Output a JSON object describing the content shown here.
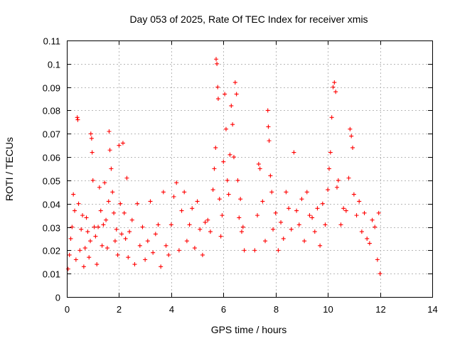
{
  "chart_data": {
    "type": "scatter",
    "title": "Day 053 of 2025, Rate Of TEC Index for receiver xmis",
    "xlabel": "GPS time / hours",
    "ylabel": "ROTI / TECUs",
    "xlim": [
      0,
      14
    ],
    "ylim": [
      0,
      0.11
    ],
    "xticks": [
      0,
      2,
      4,
      6,
      8,
      10,
      12,
      14
    ],
    "yticks": [
      0,
      0.01,
      0.02,
      0.03,
      0.04,
      0.05,
      0.06,
      0.07,
      0.08,
      0.09,
      0.1,
      0.11
    ],
    "x_tick_labels": [
      "0",
      "2",
      "4",
      "6",
      "8",
      "10",
      "12",
      "14"
    ],
    "y_tick_labels": [
      "0",
      "0.01",
      "0.02",
      "0.03",
      "0.04",
      "0.05",
      "0.06",
      "0.07",
      "0.08",
      "0.09",
      "0.1",
      "0.11"
    ],
    "grid": true,
    "marker": "plus",
    "color": "#ff0000",
    "data_extent_hours": [
      0,
      12
    ],
    "series": [
      {
        "points": [
          [
            0.05,
            0.012
          ],
          [
            0.1,
            0.018
          ],
          [
            0.15,
            0.025
          ],
          [
            0.2,
            0.03
          ],
          [
            0.25,
            0.044
          ],
          [
            0.3,
            0.037
          ],
          [
            0.35,
            0.016
          ],
          [
            0.4,
            0.077
          ],
          [
            0.42,
            0.076
          ],
          [
            0.45,
            0.04
          ],
          [
            0.5,
            0.02
          ],
          [
            0.55,
            0.029
          ],
          [
            0.6,
            0.035
          ],
          [
            0.65,
            0.013
          ],
          [
            0.7,
            0.021
          ],
          [
            0.75,
            0.034
          ],
          [
            0.8,
            0.028
          ],
          [
            0.85,
            0.017
          ],
          [
            0.9,
            0.024
          ],
          [
            0.92,
            0.07
          ],
          [
            0.95,
            0.068
          ],
          [
            0.97,
            0.062
          ],
          [
            1.0,
            0.05
          ],
          [
            1.05,
            0.03
          ],
          [
            1.1,
            0.026
          ],
          [
            1.15,
            0.014
          ],
          [
            1.2,
            0.03
          ],
          [
            1.25,
            0.047
          ],
          [
            1.3,
            0.037
          ],
          [
            1.35,
            0.022
          ],
          [
            1.4,
            0.031
          ],
          [
            1.45,
            0.049
          ],
          [
            1.5,
            0.033
          ],
          [
            1.55,
            0.021
          ],
          [
            1.6,
            0.041
          ],
          [
            1.62,
            0.071
          ],
          [
            1.65,
            0.063
          ],
          [
            1.7,
            0.055
          ],
          [
            1.75,
            0.045
          ],
          [
            1.8,
            0.036
          ],
          [
            1.85,
            0.024
          ],
          [
            1.9,
            0.029
          ],
          [
            1.95,
            0.018
          ],
          [
            2.0,
            0.065
          ],
          [
            2.05,
            0.04
          ],
          [
            2.1,
            0.027
          ],
          [
            2.15,
            0.066
          ],
          [
            2.2,
            0.036
          ],
          [
            2.25,
            0.025
          ],
          [
            2.3,
            0.051
          ],
          [
            2.35,
            0.017
          ],
          [
            2.4,
            0.028
          ],
          [
            2.5,
            0.033
          ],
          [
            2.6,
            0.014
          ],
          [
            2.7,
            0.04
          ],
          [
            2.8,
            0.022
          ],
          [
            2.9,
            0.03
          ],
          [
            3.0,
            0.016
          ],
          [
            3.1,
            0.024
          ],
          [
            3.2,
            0.041
          ],
          [
            3.3,
            0.019
          ],
          [
            3.4,
            0.027
          ],
          [
            3.5,
            0.031
          ],
          [
            3.6,
            0.013
          ],
          [
            3.7,
            0.045
          ],
          [
            3.8,
            0.022
          ],
          [
            3.9,
            0.018
          ],
          [
            4.0,
            0.031
          ],
          [
            4.1,
            0.043
          ],
          [
            4.2,
            0.049
          ],
          [
            4.3,
            0.02
          ],
          [
            4.4,
            0.037
          ],
          [
            4.5,
            0.045
          ],
          [
            4.6,
            0.024
          ],
          [
            4.7,
            0.031
          ],
          [
            4.8,
            0.038
          ],
          [
            4.9,
            0.021
          ],
          [
            5.0,
            0.041
          ],
          [
            5.1,
            0.029
          ],
          [
            5.2,
            0.018
          ],
          [
            5.3,
            0.032
          ],
          [
            5.4,
            0.033
          ],
          [
            5.5,
            0.028
          ],
          [
            5.6,
            0.046
          ],
          [
            5.65,
            0.055
          ],
          [
            5.7,
            0.064
          ],
          [
            5.72,
            0.102
          ],
          [
            5.75,
            0.1
          ],
          [
            5.78,
            0.09
          ],
          [
            5.8,
            0.085
          ],
          [
            5.85,
            0.042
          ],
          [
            5.9,
            0.026
          ],
          [
            5.95,
            0.035
          ],
          [
            6.0,
            0.058
          ],
          [
            6.05,
            0.087
          ],
          [
            6.1,
            0.072
          ],
          [
            6.15,
            0.05
          ],
          [
            6.2,
            0.044
          ],
          [
            6.25,
            0.061
          ],
          [
            6.3,
            0.082
          ],
          [
            6.35,
            0.074
          ],
          [
            6.4,
            0.06
          ],
          [
            6.45,
            0.092
          ],
          [
            6.5,
            0.087
          ],
          [
            6.55,
            0.05
          ],
          [
            6.6,
            0.034
          ],
          [
            6.65,
            0.042
          ],
          [
            6.7,
            0.028
          ],
          [
            6.75,
            0.03
          ],
          [
            6.8,
            0.02
          ],
          [
            7.2,
            0.02
          ],
          [
            7.3,
            0.035
          ],
          [
            7.35,
            0.057
          ],
          [
            7.4,
            0.055
          ],
          [
            7.5,
            0.041
          ],
          [
            7.6,
            0.024
          ],
          [
            7.7,
            0.08
          ],
          [
            7.72,
            0.073
          ],
          [
            7.75,
            0.067
          ],
          [
            7.8,
            0.052
          ],
          [
            7.85,
            0.045
          ],
          [
            7.9,
            0.029
          ],
          [
            8.0,
            0.036
          ],
          [
            8.1,
            0.02
          ],
          [
            8.2,
            0.032
          ],
          [
            8.3,
            0.025
          ],
          [
            8.4,
            0.045
          ],
          [
            8.5,
            0.038
          ],
          [
            8.6,
            0.029
          ],
          [
            8.7,
            0.062
          ],
          [
            8.8,
            0.037
          ],
          [
            8.9,
            0.031
          ],
          [
            9.0,
            0.042
          ],
          [
            9.1,
            0.024
          ],
          [
            9.2,
            0.045
          ],
          [
            9.3,
            0.035
          ],
          [
            9.4,
            0.034
          ],
          [
            9.5,
            0.028
          ],
          [
            9.6,
            0.038
          ],
          [
            9.7,
            0.022
          ],
          [
            9.8,
            0.04
          ],
          [
            9.9,
            0.031
          ],
          [
            10.0,
            0.046
          ],
          [
            10.05,
            0.055
          ],
          [
            10.1,
            0.062
          ],
          [
            10.15,
            0.077
          ],
          [
            10.2,
            0.09
          ],
          [
            10.25,
            0.092
          ],
          [
            10.3,
            0.088
          ],
          [
            10.35,
            0.047
          ],
          [
            10.4,
            0.05
          ],
          [
            10.5,
            0.031
          ],
          [
            10.6,
            0.038
          ],
          [
            10.7,
            0.037
          ],
          [
            10.8,
            0.051
          ],
          [
            10.85,
            0.072
          ],
          [
            10.9,
            0.069
          ],
          [
            10.95,
            0.064
          ],
          [
            11.0,
            0.044
          ],
          [
            11.1,
            0.035
          ],
          [
            11.2,
            0.041
          ],
          [
            11.3,
            0.028
          ],
          [
            11.4,
            0.036
          ],
          [
            11.5,
            0.025
          ],
          [
            11.6,
            0.023
          ],
          [
            11.7,
            0.033
          ],
          [
            11.8,
            0.03
          ],
          [
            11.9,
            0.016
          ],
          [
            11.95,
            0.036
          ],
          [
            12.0,
            0.01
          ]
        ]
      }
    ]
  }
}
